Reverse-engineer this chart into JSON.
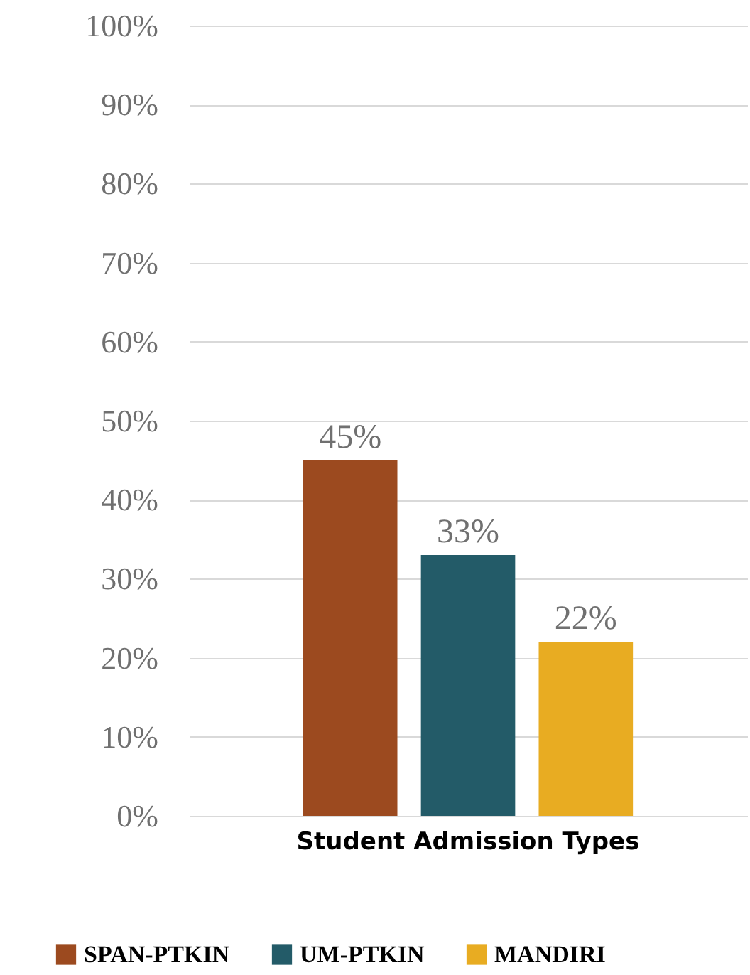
{
  "chart_data": {
    "type": "bar",
    "categories": [
      "Student Admission Types"
    ],
    "series": [
      {
        "name": "SPAN-PTKIN",
        "color": "#9c4a1f",
        "values": [
          45
        ],
        "value_labels": [
          "45%"
        ]
      },
      {
        "name": "UM-PTKIN",
        "color": "#235b68",
        "values": [
          33
        ],
        "value_labels": [
          "33%"
        ]
      },
      {
        "name": "MANDIRI",
        "color": "#e8ac22",
        "values": [
          22
        ],
        "value_labels": [
          "22%"
        ]
      }
    ],
    "ylim": [
      0,
      100
    ],
    "yticks": [
      {
        "value": 0,
        "label": "0%"
      },
      {
        "value": 10,
        "label": "10%"
      },
      {
        "value": 20,
        "label": "20%"
      },
      {
        "value": 30,
        "label": "30%"
      },
      {
        "value": 40,
        "label": "40%"
      },
      {
        "value": 50,
        "label": "50%"
      },
      {
        "value": 60,
        "label": "60%"
      },
      {
        "value": 70,
        "label": "70%"
      },
      {
        "value": 80,
        "label": "80%"
      },
      {
        "value": 90,
        "label": "90%"
      },
      {
        "value": 100,
        "label": "100%"
      }
    ],
    "grid": "y",
    "legend": "bottom"
  }
}
